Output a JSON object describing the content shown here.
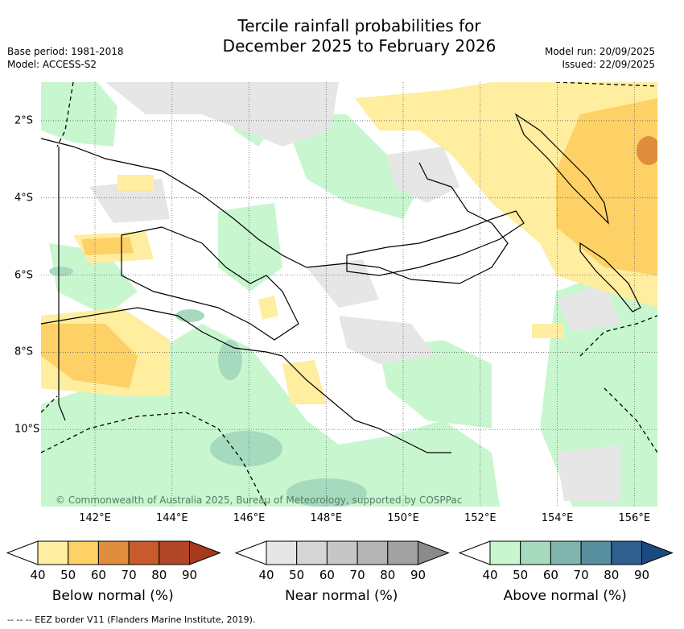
{
  "title": {
    "line1": "Tercile rainfall probabilities for",
    "line2": "December 2025 to February 2026"
  },
  "meta": {
    "base_period": "Base period: 1981-2018",
    "model": "Model: ACCESS-S2",
    "model_run": "Model run: 20/09/2025",
    "issued": "Issued: 22/09/2025"
  },
  "map": {
    "credit": "© Commonwealth of Australia 2025, Bureau of Meteorology, supported by COSPPac",
    "lon_labels": [
      "142°E",
      "144°E",
      "146°E",
      "148°E",
      "150°E",
      "152°E",
      "154°E",
      "156°E"
    ],
    "lat_labels": [
      "2°S",
      "4°S",
      "6°S",
      "8°S",
      "10°S"
    ],
    "extent": {
      "lon": [
        140.6,
        156.6
      ],
      "lat": [
        -12.0,
        -1.0
      ]
    }
  },
  "colorbars": [
    {
      "name": "below",
      "title": "Below normal (%)",
      "colors": [
        "#ffeda0",
        "#fed166",
        "#e08e3e",
        "#c95a2a",
        "#b04527",
        "#a63a1f"
      ],
      "ticks": [
        "40",
        "50",
        "60",
        "70",
        "80",
        "90"
      ]
    },
    {
      "name": "near",
      "title": "Near normal (%)",
      "colors": [
        "#e6e6e6",
        "#d6d6d6",
        "#c6c6c6",
        "#b4b4b4",
        "#a2a2a2",
        "#8a8a8a"
      ],
      "ticks": [
        "40",
        "50",
        "60",
        "70",
        "80",
        "90"
      ]
    },
    {
      "name": "above",
      "title": "Above normal (%)",
      "colors": [
        "#c8f7cf",
        "#a6dabf",
        "#7fb5ad",
        "#578f9e",
        "#2f5f8e",
        "#1c4a80"
      ],
      "ticks": [
        "40",
        "50",
        "60",
        "70",
        "80",
        "90"
      ]
    }
  ],
  "legend": {
    "eez": "-- -- -- EEZ border V11 (Flanders Marine Institute, 2019)."
  }
}
